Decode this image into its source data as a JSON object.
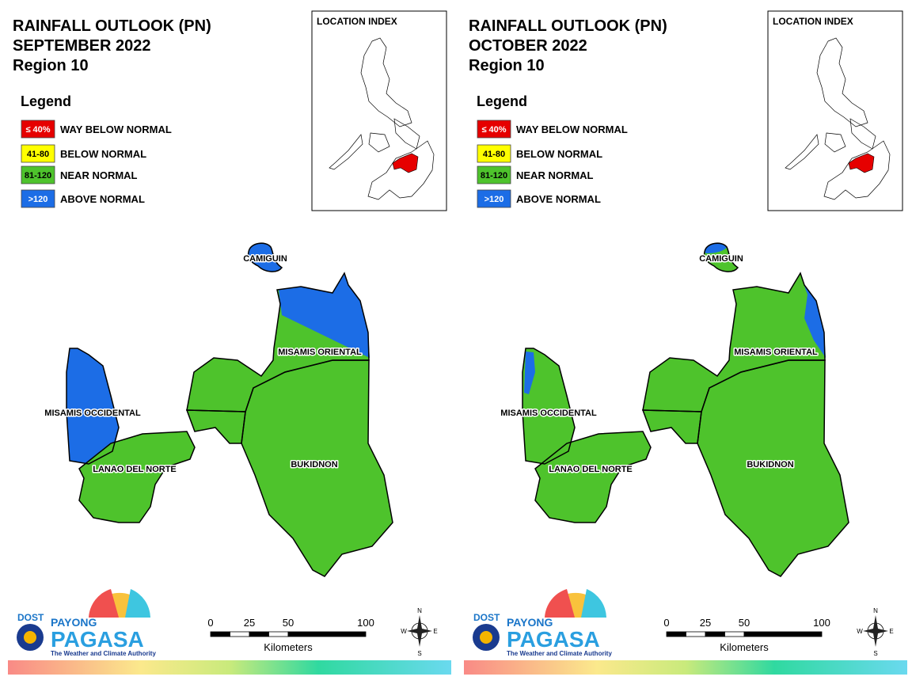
{
  "panels": [
    {
      "title": [
        "RAINFALL OUTLOOK (PN)",
        "SEPTEMBER 2022",
        "Region 10"
      ],
      "legend": {
        "title": "Legend",
        "items": [
          {
            "swatch": "≤ 40%",
            "label": "WAY BELOW NORMAL",
            "color": "#e60000"
          },
          {
            "swatch": "41-80",
            "label": "BELOW NORMAL",
            "color": "#ffff00"
          },
          {
            "swatch": "81-120",
            "label": "NEAR NORMAL",
            "color": "#4ec32c"
          },
          {
            "swatch": ">120",
            "label": "ABOVE NORMAL",
            "color": "#1c6de6"
          }
        ]
      },
      "location_index": "LOCATION INDEX",
      "regions": [
        "CAMIGUIN",
        "MISAMIS ORIENTAL",
        "MISAMIS OCCIDENTAL",
        "LANAO DEL NORTE",
        "BUKIDNON"
      ],
      "scale": {
        "ticks": [
          0,
          25,
          50,
          100
        ],
        "unit": "Kilometers"
      },
      "compass": [
        "N",
        "E",
        "S",
        "W"
      ],
      "logo": {
        "agency": "DOST",
        "brand_top": "PAYONG",
        "brand": "PAGASA",
        "tagline": "The Weather and Climate Authority"
      }
    },
    {
      "title": [
        "RAINFALL OUTLOOK (PN)",
        "OCTOBER 2022",
        "Region 10"
      ],
      "legend": {
        "title": "Legend",
        "items": [
          {
            "swatch": "≤ 40%",
            "label": "WAY BELOW NORMAL",
            "color": "#e60000"
          },
          {
            "swatch": "41-80",
            "label": "BELOW NORMAL",
            "color": "#ffff00"
          },
          {
            "swatch": "81-120",
            "label": "NEAR NORMAL",
            "color": "#4ec32c"
          },
          {
            "swatch": ">120",
            "label": "ABOVE NORMAL",
            "color": "#1c6de6"
          }
        ]
      },
      "location_index": "LOCATION INDEX",
      "regions": [
        "CAMIGUIN",
        "MISAMIS ORIENTAL",
        "MISAMIS OCCIDENTAL",
        "LANAO DEL NORTE",
        "BUKIDNON"
      ],
      "scale": {
        "ticks": [
          0,
          25,
          50,
          100
        ],
        "unit": "Kilometers"
      },
      "compass": [
        "N",
        "E",
        "S",
        "W"
      ],
      "logo": {
        "agency": "DOST",
        "brand_top": "PAYONG",
        "brand": "PAGASA",
        "tagline": "The Weather and Climate Authority"
      }
    }
  ]
}
